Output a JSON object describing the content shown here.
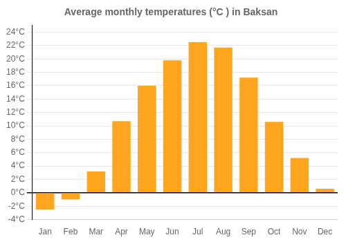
{
  "chart_data": {
    "type": "bar",
    "title": "Average monthly temperatures (°C ) in Baksan",
    "categories": [
      "Jan",
      "Feb",
      "Mar",
      "Apr",
      "May",
      "Jun",
      "Jul",
      "Aug",
      "Sep",
      "Oct",
      "Nov",
      "Dec"
    ],
    "values": [
      -2.5,
      -1.0,
      3.2,
      10.7,
      16.0,
      19.8,
      22.5,
      21.7,
      17.2,
      10.6,
      5.2,
      0.6
    ],
    "color": "#FFA520",
    "ylim": [
      -4,
      25
    ],
    "yticks": [
      {
        "value": -4,
        "label": "-4°C"
      },
      {
        "value": -2,
        "label": "-2°C"
      },
      {
        "value": 0,
        "label": "0°C"
      },
      {
        "value": 2,
        "label": "2°C"
      },
      {
        "value": 4,
        "label": "4°C"
      },
      {
        "value": 6,
        "label": "6°C"
      },
      {
        "value": 8,
        "label": "8°C"
      },
      {
        "value": 10,
        "label": "10°C"
      },
      {
        "value": 12,
        "label": "12°C"
      },
      {
        "value": 14,
        "label": "14°C"
      },
      {
        "value": 16,
        "label": "16°C"
      },
      {
        "value": 18,
        "label": "18°C"
      },
      {
        "value": 20,
        "label": "20°C"
      },
      {
        "value": 22,
        "label": "22°C"
      },
      {
        "value": 24,
        "label": "24°C"
      }
    ],
    "grid": true
  }
}
